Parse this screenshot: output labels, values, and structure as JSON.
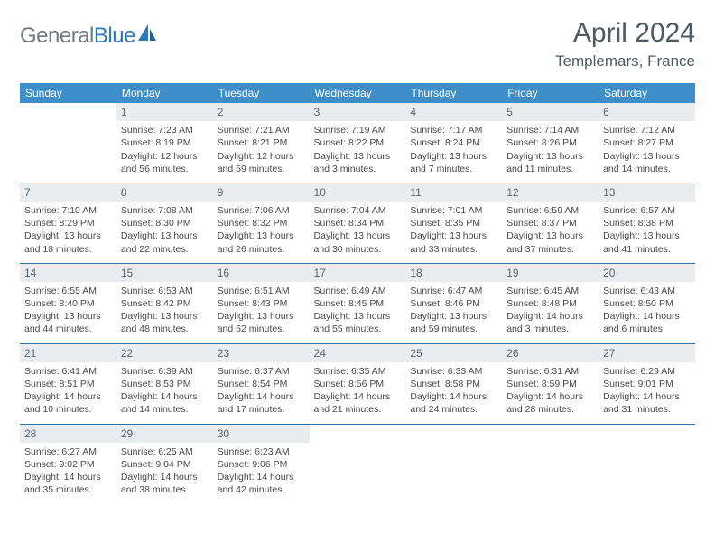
{
  "brand": {
    "part1": "General",
    "part2": "Blue"
  },
  "title": "April 2024",
  "location": "Templemars, France",
  "header_bg": "#3d8ec9",
  "divider_color": "#2f6fa3",
  "daynum_bg": "#e9edef",
  "weekdays": [
    "Sunday",
    "Monday",
    "Tuesday",
    "Wednesday",
    "Thursday",
    "Friday",
    "Saturday"
  ],
  "weeks": [
    [
      null,
      {
        "n": "1",
        "sr": "7:23 AM",
        "ss": "8:19 PM",
        "dl": "12 hours and 56 minutes."
      },
      {
        "n": "2",
        "sr": "7:21 AM",
        "ss": "8:21 PM",
        "dl": "12 hours and 59 minutes."
      },
      {
        "n": "3",
        "sr": "7:19 AM",
        "ss": "8:22 PM",
        "dl": "13 hours and 3 minutes."
      },
      {
        "n": "4",
        "sr": "7:17 AM",
        "ss": "8:24 PM",
        "dl": "13 hours and 7 minutes."
      },
      {
        "n": "5",
        "sr": "7:14 AM",
        "ss": "8:26 PM",
        "dl": "13 hours and 11 minutes."
      },
      {
        "n": "6",
        "sr": "7:12 AM",
        "ss": "8:27 PM",
        "dl": "13 hours and 14 minutes."
      }
    ],
    [
      {
        "n": "7",
        "sr": "7:10 AM",
        "ss": "8:29 PM",
        "dl": "13 hours and 18 minutes."
      },
      {
        "n": "8",
        "sr": "7:08 AM",
        "ss": "8:30 PM",
        "dl": "13 hours and 22 minutes."
      },
      {
        "n": "9",
        "sr": "7:06 AM",
        "ss": "8:32 PM",
        "dl": "13 hours and 26 minutes."
      },
      {
        "n": "10",
        "sr": "7:04 AM",
        "ss": "8:34 PM",
        "dl": "13 hours and 30 minutes."
      },
      {
        "n": "11",
        "sr": "7:01 AM",
        "ss": "8:35 PM",
        "dl": "13 hours and 33 minutes."
      },
      {
        "n": "12",
        "sr": "6:59 AM",
        "ss": "8:37 PM",
        "dl": "13 hours and 37 minutes."
      },
      {
        "n": "13",
        "sr": "6:57 AM",
        "ss": "8:38 PM",
        "dl": "13 hours and 41 minutes."
      }
    ],
    [
      {
        "n": "14",
        "sr": "6:55 AM",
        "ss": "8:40 PM",
        "dl": "13 hours and 44 minutes."
      },
      {
        "n": "15",
        "sr": "6:53 AM",
        "ss": "8:42 PM",
        "dl": "13 hours and 48 minutes."
      },
      {
        "n": "16",
        "sr": "6:51 AM",
        "ss": "8:43 PM",
        "dl": "13 hours and 52 minutes."
      },
      {
        "n": "17",
        "sr": "6:49 AM",
        "ss": "8:45 PM",
        "dl": "13 hours and 55 minutes."
      },
      {
        "n": "18",
        "sr": "6:47 AM",
        "ss": "8:46 PM",
        "dl": "13 hours and 59 minutes."
      },
      {
        "n": "19",
        "sr": "6:45 AM",
        "ss": "8:48 PM",
        "dl": "14 hours and 3 minutes."
      },
      {
        "n": "20",
        "sr": "6:43 AM",
        "ss": "8:50 PM",
        "dl": "14 hours and 6 minutes."
      }
    ],
    [
      {
        "n": "21",
        "sr": "6:41 AM",
        "ss": "8:51 PM",
        "dl": "14 hours and 10 minutes."
      },
      {
        "n": "22",
        "sr": "6:39 AM",
        "ss": "8:53 PM",
        "dl": "14 hours and 14 minutes."
      },
      {
        "n": "23",
        "sr": "6:37 AM",
        "ss": "8:54 PM",
        "dl": "14 hours and 17 minutes."
      },
      {
        "n": "24",
        "sr": "6:35 AM",
        "ss": "8:56 PM",
        "dl": "14 hours and 21 minutes."
      },
      {
        "n": "25",
        "sr": "6:33 AM",
        "ss": "8:58 PM",
        "dl": "14 hours and 24 minutes."
      },
      {
        "n": "26",
        "sr": "6:31 AM",
        "ss": "8:59 PM",
        "dl": "14 hours and 28 minutes."
      },
      {
        "n": "27",
        "sr": "6:29 AM",
        "ss": "9:01 PM",
        "dl": "14 hours and 31 minutes."
      }
    ],
    [
      {
        "n": "28",
        "sr": "6:27 AM",
        "ss": "9:02 PM",
        "dl": "14 hours and 35 minutes."
      },
      {
        "n": "29",
        "sr": "6:25 AM",
        "ss": "9:04 PM",
        "dl": "14 hours and 38 minutes."
      },
      {
        "n": "30",
        "sr": "6:23 AM",
        "ss": "9:06 PM",
        "dl": "14 hours and 42 minutes."
      },
      null,
      null,
      null,
      null
    ]
  ],
  "labels": {
    "sunrise": "Sunrise:",
    "sunset": "Sunset:",
    "daylight": "Daylight:"
  }
}
